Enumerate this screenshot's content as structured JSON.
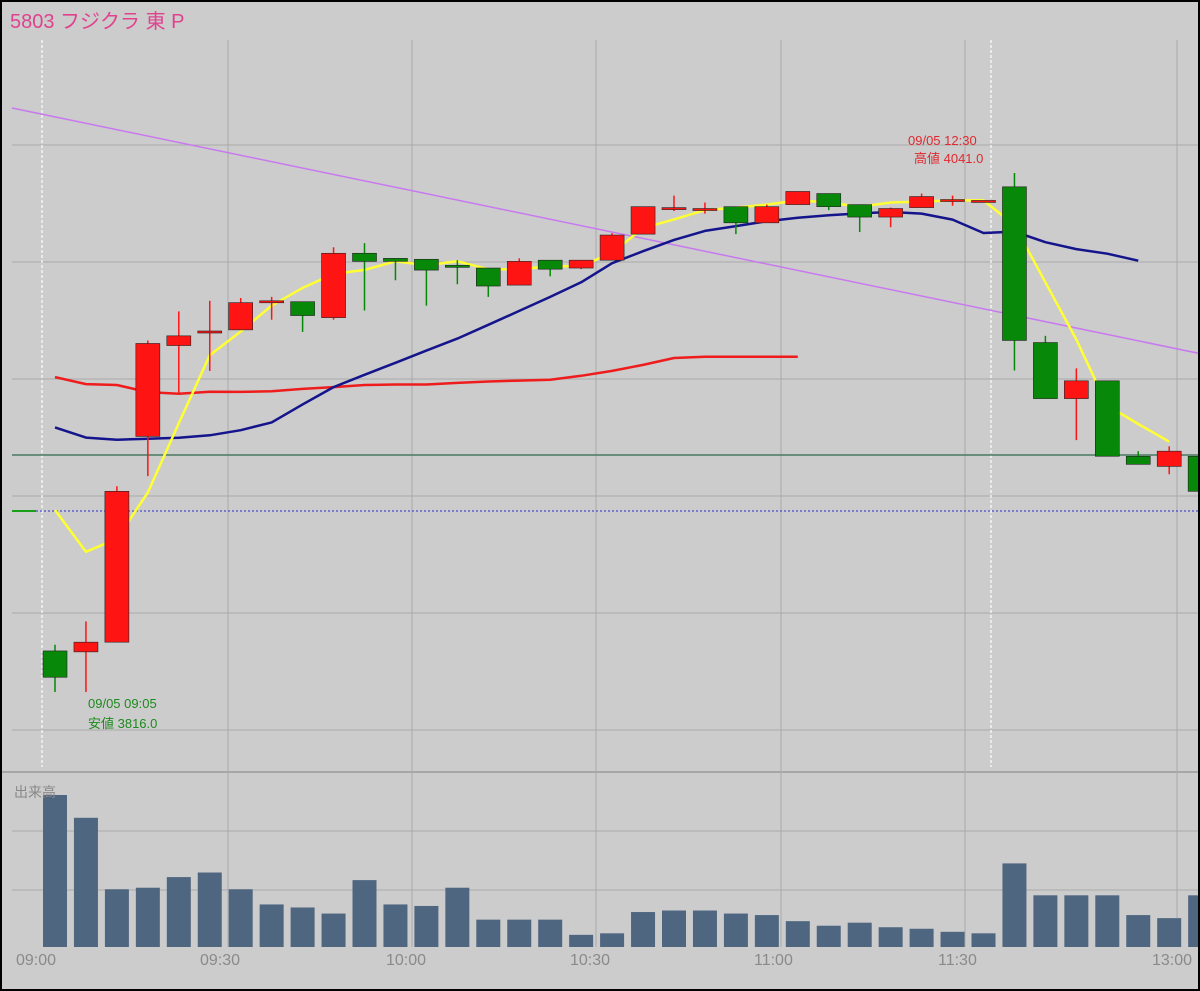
{
  "header": {
    "title": "5803 フジクラ 東 P"
  },
  "colors": {
    "background": "#cccccc",
    "up": "#ff1414",
    "down": "#088808",
    "ma_fast": "#ffff33",
    "ma_mid": "#14148c",
    "ma_slow": "#ee1c1c",
    "trend_line": "#c878f0",
    "vwap": "#d8e2ee",
    "volume_bar": "#4f6680"
  },
  "chart_data": {
    "type": "candlestick",
    "x_ticks": [
      "09:00",
      "09:30",
      "10:00",
      "10:30",
      "11:00",
      "11:30",
      "13:00"
    ],
    "annotations": [
      {
        "date": "09/05 12:30",
        "label": "高値 4041.0",
        "kind": "high"
      },
      {
        "date": "09/05 09:05",
        "label": "安値 3816.0",
        "kind": "low"
      }
    ],
    "price_scale": {
      "high": 4041.0,
      "low": 3816.0
    },
    "candles": [
      {
        "open": 3833.8,
        "high": 3836.5,
        "close": 3822.4,
        "low": 3816.0,
        "t": "09:05"
      },
      {
        "open": 3833.4,
        "high": 3846.6,
        "close": 3837.6,
        "low": 3816.0,
        "t": "09:10"
      },
      {
        "open": 3837.6,
        "high": 3905.2,
        "close": 3903.0,
        "low": 3837.6,
        "t": "09:15"
      },
      {
        "open": 3926.8,
        "high": 3968.4,
        "close": 3967.1,
        "low": 3909.6,
        "t": "09:20"
      },
      {
        "open": 3966.2,
        "high": 3981.0,
        "close": 3970.4,
        "low": 3945.7,
        "t": "09:25"
      },
      {
        "open": 3971.7,
        "high": 3985.6,
        "close": 3972.5,
        "low": 3955.2,
        "t": "09:30"
      },
      {
        "open": 3973.0,
        "high": 3986.8,
        "close": 3984.8,
        "low": 3973.0,
        "t": "09:35"
      },
      {
        "open": 3985.2,
        "high": 3987.3,
        "close": 3985.6,
        "low": 3977.4,
        "t": "09:40"
      },
      {
        "open": 3985.2,
        "high": 3985.2,
        "close": 3979.2,
        "low": 3972.1,
        "t": "09:45"
      },
      {
        "open": 3978.3,
        "high": 4008.8,
        "close": 4006.2,
        "low": 3977.4,
        "t": "09:50"
      },
      {
        "open": 4006.2,
        "high": 4010.6,
        "close": 4002.7,
        "low": 3981.4,
        "t": "09:55"
      },
      {
        "open": 4004.0,
        "high": 4004.0,
        "close": 4002.7,
        "low": 3994.5,
        "t": "10:00"
      },
      {
        "open": 4003.6,
        "high": 4003.6,
        "close": 3998.9,
        "low": 3983.5,
        "t": "10:05"
      },
      {
        "open": 4001.0,
        "high": 4003.2,
        "close": 4000.1,
        "low": 3992.8,
        "t": "10:10"
      },
      {
        "open": 3999.8,
        "high": 3999.8,
        "close": 3992.0,
        "low": 3987.3,
        "t": "10:15"
      },
      {
        "open": 3992.4,
        "high": 4004.0,
        "close": 4002.7,
        "low": 3992.4,
        "t": "10:20"
      },
      {
        "open": 4003.2,
        "high": 4003.2,
        "close": 3999.3,
        "low": 3996.2,
        "t": "10:25"
      },
      {
        "open": 3999.8,
        "high": 4003.2,
        "close": 4003.2,
        "low": 3999.3,
        "t": "10:30"
      },
      {
        "open": 4003.2,
        "high": 4014.9,
        "close": 4014.1,
        "low": 4003.2,
        "t": "10:35"
      },
      {
        "open": 4014.5,
        "high": 4026.4,
        "close": 4026.4,
        "low": 4014.5,
        "t": "10:40"
      },
      {
        "open": 4026.0,
        "high": 4031.2,
        "close": 4026.0,
        "low": 4024.5,
        "t": "10:45"
      },
      {
        "open": 4025.6,
        "high": 4028.2,
        "close": 4025.6,
        "low": 4023.4,
        "t": "10:50"
      },
      {
        "open": 4026.4,
        "high": 4026.4,
        "close": 4019.4,
        "low": 4014.5,
        "t": "10:55"
      },
      {
        "open": 4019.4,
        "high": 4027.3,
        "close": 4026.4,
        "low": 4019.4,
        "t": "11:00"
      },
      {
        "open": 4027.3,
        "high": 4032.1,
        "close": 4033.0,
        "low": 4027.3,
        "t": "11:05"
      },
      {
        "open": 4032.1,
        "high": 4032.1,
        "close": 4026.4,
        "low": 4024.9,
        "t": "11:10"
      },
      {
        "open": 4027.3,
        "high": 4027.3,
        "close": 4021.9,
        "low": 4015.4,
        "t": "11:15"
      },
      {
        "open": 4021.9,
        "high": 4026.0,
        "close": 4025.6,
        "low": 4017.5,
        "t": "11:20"
      },
      {
        "open": 4026.0,
        "high": 4032.1,
        "close": 4030.8,
        "low": 4026.0,
        "t": "11:25"
      },
      {
        "open": 4029.5,
        "high": 4031.2,
        "close": 4029.5,
        "low": 4026.8,
        "t": "11:30"
      },
      {
        "open": 4029.1,
        "high": 4029.1,
        "close": 4029.1,
        "low": 4029.1,
        "t": "12:25"
      },
      {
        "open": 4035.0,
        "high": 4041.0,
        "close": 3968.4,
        "low": 3955.4,
        "t": "12:30"
      },
      {
        "open": 3967.5,
        "high": 3970.4,
        "close": 3943.2,
        "low": 3943.2,
        "t": "12:35"
      },
      {
        "open": 3943.2,
        "high": 3956.3,
        "close": 3950.9,
        "low": 3925.2,
        "t": "12:40"
      },
      {
        "open": 3950.9,
        "high": 3950.9,
        "close": 3918.2,
        "low": 3918.2,
        "t": "12:45"
      },
      {
        "open": 3918.2,
        "high": 3920.4,
        "close": 3914.7,
        "low": 3914.7,
        "t": "12:50"
      },
      {
        "open": 3913.8,
        "high": 3922.5,
        "close": 3920.4,
        "low": 3910.4,
        "t": "12:55"
      },
      {
        "open": 3918.2,
        "high": 3922.5,
        "close": 3903.0,
        "low": 3896.9,
        "t": "13:00"
      }
    ],
    "ma_fast": [
      3894.9,
      3876.8,
      3882.4,
      3902.5,
      3932.5,
      3962.0,
      3972.3,
      3983.5,
      3991.2,
      3997.2,
      3999.0,
      4002.7,
      4001.0,
      4002.7,
      3999.3,
      3999.3,
      4000.6,
      4000.6,
      4006.4,
      4017.1,
      4020.9,
      4024.9,
      4026.0,
      4027.3,
      4029.1,
      4028.2,
      4026.4,
      4028.2,
      4028.6,
      4029.1,
      4029.1,
      4018.4,
      3993.6,
      3968.8,
      3940.2,
      3932.2,
      3924.5
    ],
    "ma_mid": [
      3930.7,
      3926.3,
      3925.4,
      3925.8,
      3926.2,
      3927.3,
      3929.5,
      3932.9,
      3940.7,
      3948.2,
      3953.5,
      3958.7,
      3964.0,
      3969.2,
      3975.2,
      3981.2,
      3987.3,
      3993.6,
      4001.9,
      4007.1,
      4012.0,
      4015.9,
      4018.0,
      4020.1,
      4021.6,
      4022.7,
      4023.5,
      4024.1,
      4023.4,
      4020.8,
      4015.0,
      4015.6,
      4011.0,
      4008.0,
      4006.0,
      4003.0
    ],
    "ma_slow": [
      3952.5,
      3949.5,
      3949.1,
      3946.0,
      3945.3,
      3946.2,
      3946.1,
      3946.4,
      3947.4,
      3948.2,
      3949.1,
      3949.3,
      3949.3,
      3950.0,
      3950.6,
      3951.0,
      3951.4,
      3953.1,
      3955.2,
      3957.8,
      3960.8,
      3961.3,
      3961.3,
      3961.3,
      3961.3
    ],
    "volume": [
      100,
      85,
      38,
      39,
      46,
      49,
      38,
      28,
      26,
      22,
      44,
      28,
      27,
      39,
      18,
      18,
      18,
      8,
      9,
      23,
      24,
      24,
      22,
      21,
      17,
      14,
      16,
      13,
      12,
      10,
      9,
      55,
      34,
      34,
      34,
      21,
      19,
      34
    ]
  },
  "volume_panel": {
    "label": "出来高"
  }
}
